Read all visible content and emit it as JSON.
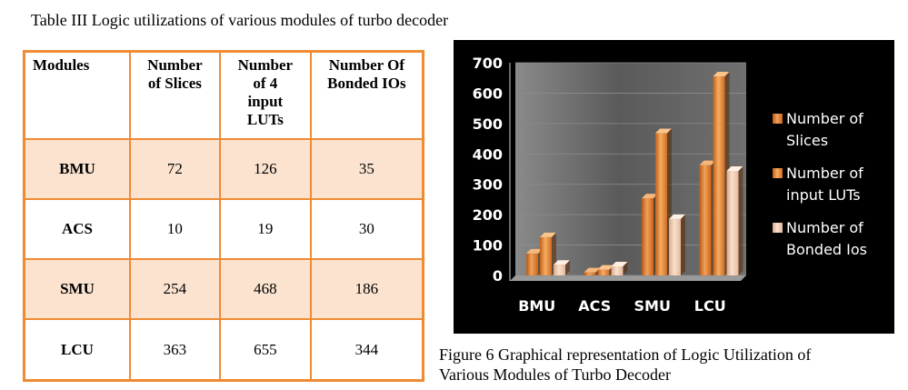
{
  "table": {
    "caption": "Table III Logic utilizations of various modules of turbo decoder",
    "headers": [
      "Modules",
      "Number of Slices",
      "Number of 4 input LUTs",
      "Number Of Bonded IOs"
    ],
    "rows": [
      {
        "module": "BMU",
        "slices": "72",
        "luts": "126",
        "ios": "35"
      },
      {
        "module": "ACS",
        "slices": "10",
        "luts": "19",
        "ios": "30"
      },
      {
        "module": "SMU",
        "slices": "254",
        "luts": "468",
        "ios": "186"
      },
      {
        "module": "LCU",
        "slices": "363",
        "luts": "655",
        "ios": "344"
      }
    ]
  },
  "figure": {
    "caption_line1": "Figure 6 Graphical representation of Logic Utilization of",
    "caption_line2": "Various Modules of Turbo Decoder"
  },
  "chart_data": {
    "type": "bar",
    "categories": [
      "BMU",
      "ACS",
      "SMU",
      "LCU"
    ],
    "series": [
      {
        "name": "Number of Slices",
        "legend_lines": [
          "Number of",
          "Slices"
        ],
        "values": [
          72,
          10,
          254,
          363
        ],
        "color": "#e07b2a"
      },
      {
        "name": "Number of input LUTs",
        "legend_lines": [
          "Number of",
          "input LUTs"
        ],
        "values": [
          126,
          19,
          468,
          655
        ],
        "color": "#e88a30"
      },
      {
        "name": "Number of Bonded Ios",
        "legend_lines": [
          "Number of",
          "Bonded Ios"
        ],
        "values": [
          35,
          30,
          186,
          344
        ],
        "color": "#f2c8a8"
      }
    ],
    "ylim": [
      0,
      700
    ],
    "yticks": [
      "0",
      "100",
      "200",
      "300",
      "400",
      "500",
      "600",
      "700"
    ],
    "background": "#000000",
    "plot_area_color": "#6b6b6b",
    "legend_position": "right",
    "style": "3d-clustered"
  }
}
